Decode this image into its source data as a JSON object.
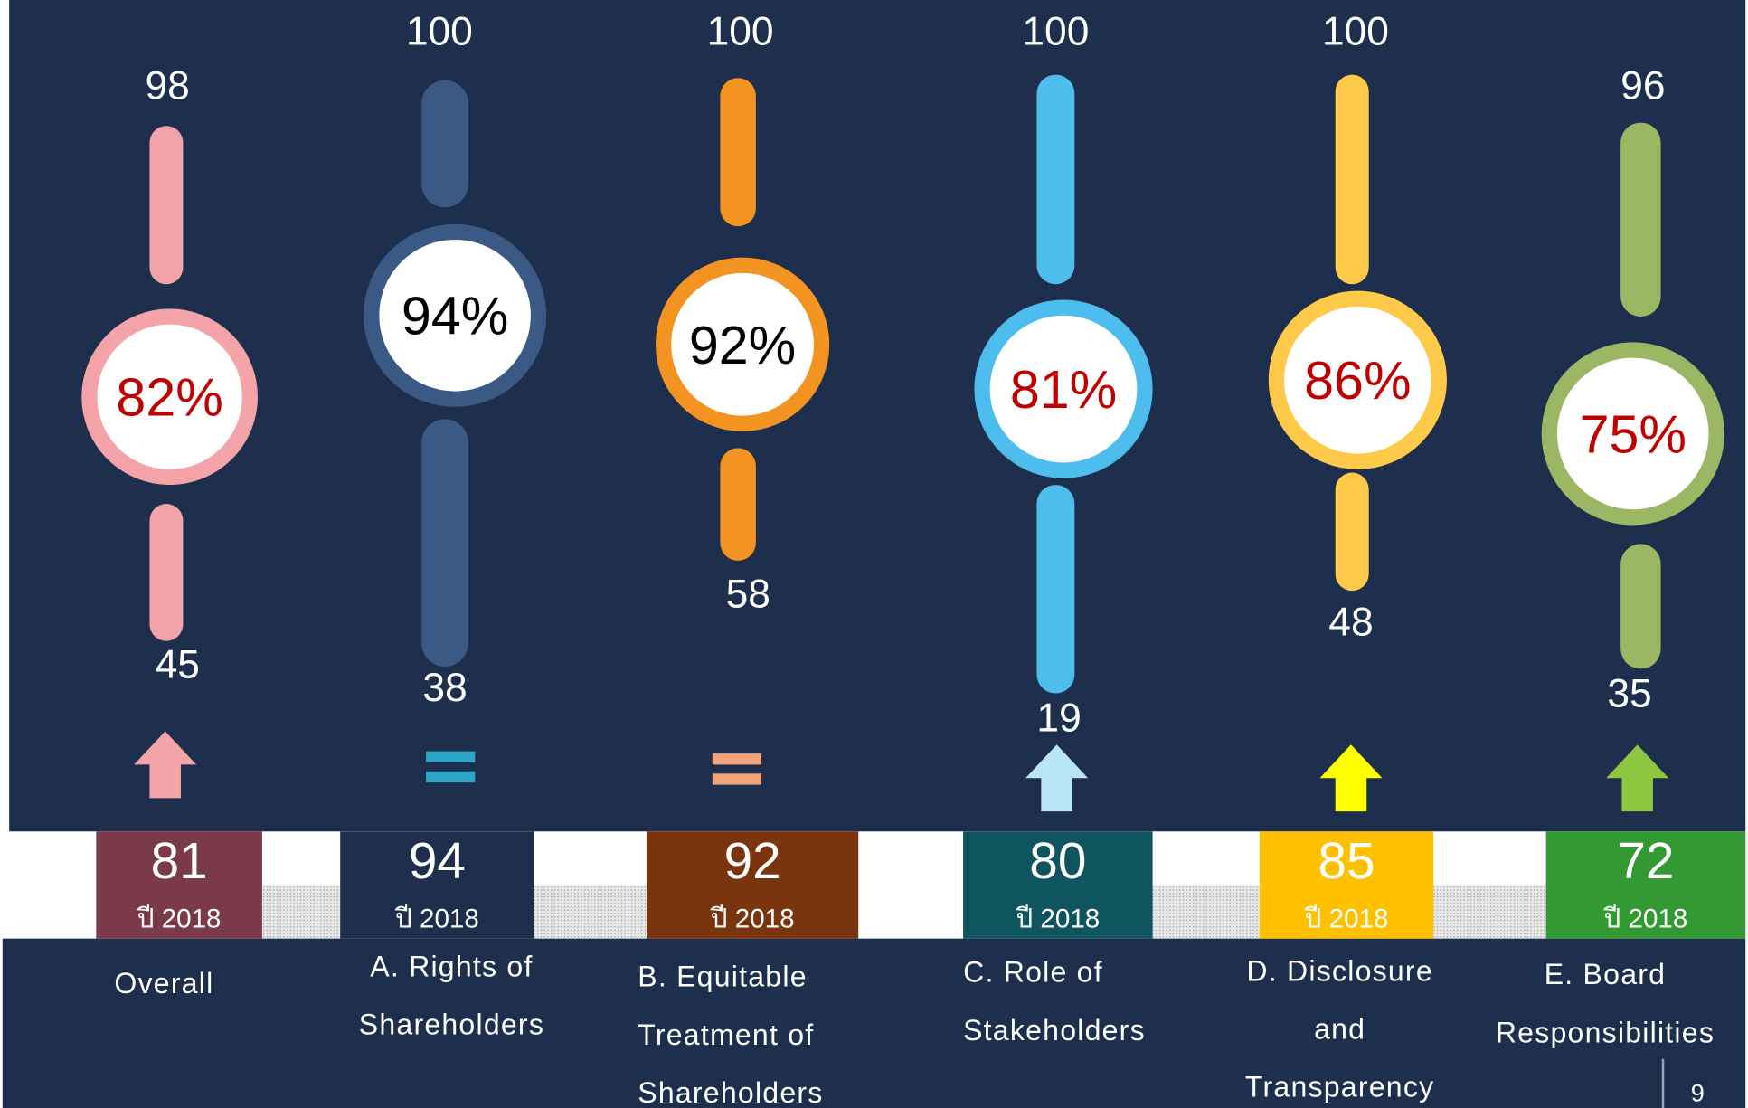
{
  "columns": [
    {
      "max": "98",
      "min": "45",
      "percent": "82%",
      "score": "81",
      "year": "ปี 2018",
      "label": [
        "Overall"
      ]
    },
    {
      "max": "100",
      "min": "38",
      "percent": "94%",
      "score": "94",
      "year": "ปี 2018",
      "label": [
        "A. Rights of",
        "Shareholders"
      ]
    },
    {
      "max": "100",
      "min": "58",
      "percent": "92%",
      "score": "92",
      "year": "ปี 2018",
      "label": [
        "B. Equitable",
        "Treatment of",
        "Shareholders"
      ]
    },
    {
      "max": "100",
      "min": "19",
      "percent": "81%",
      "score": "80",
      "year": "ปี 2018",
      "label": [
        "C. Role of",
        "Stakeholders"
      ]
    },
    {
      "max": "100",
      "min": "48",
      "percent": "86%",
      "score": "85",
      "year": "ปี 2018",
      "label": [
        "D. Disclosure",
        "and",
        "Transparency"
      ]
    },
    {
      "max": "96",
      "min": "35",
      "percent": "75%",
      "score": "72",
      "year": "ปี 2018",
      "label": [
        "E. Board",
        "Responsibilities"
      ]
    }
  ],
  "page_number": "9"
}
